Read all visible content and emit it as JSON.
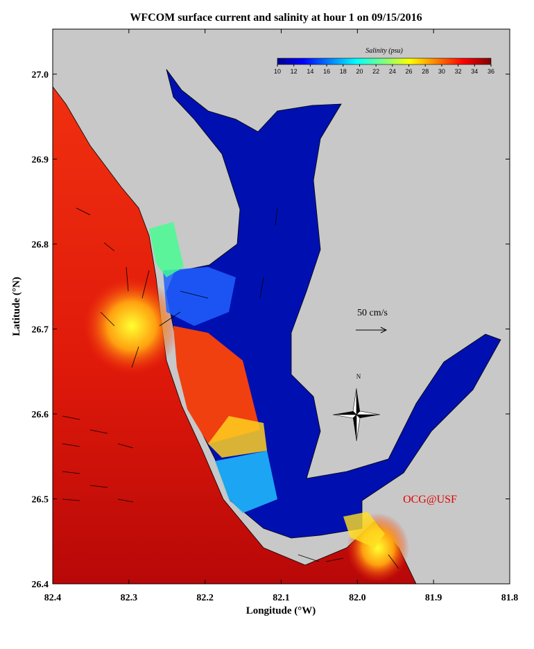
{
  "title": "WFCOM surface current and salinity at hour 1 on 09/15/2016",
  "xlabel": "Longitude (°W)",
  "ylabel": "Latitude (°N)",
  "xlim": [
    82.4,
    81.8
  ],
  "ylim": [
    26.4,
    27.053
  ],
  "xticks": [
    82.4,
    82.3,
    82.2,
    82.1,
    {
      "value": 82,
      "label": "82.0"
    },
    81.9,
    81.8
  ],
  "yticks": [
    26.4,
    26.5,
    26.6,
    26.7,
    26.8,
    26.9,
    {
      "value": 27,
      "label": "27.0"
    }
  ],
  "colorbar": {
    "label": "Salinity (psu)",
    "lim": [
      10,
      36
    ],
    "ticks": [
      10,
      12,
      14,
      16,
      18,
      20,
      22,
      24,
      26,
      28,
      30,
      32,
      34,
      36
    ]
  },
  "annotations": {
    "scale": "50 cm/s",
    "north": "N",
    "credit": "OCG@USF"
  }
}
